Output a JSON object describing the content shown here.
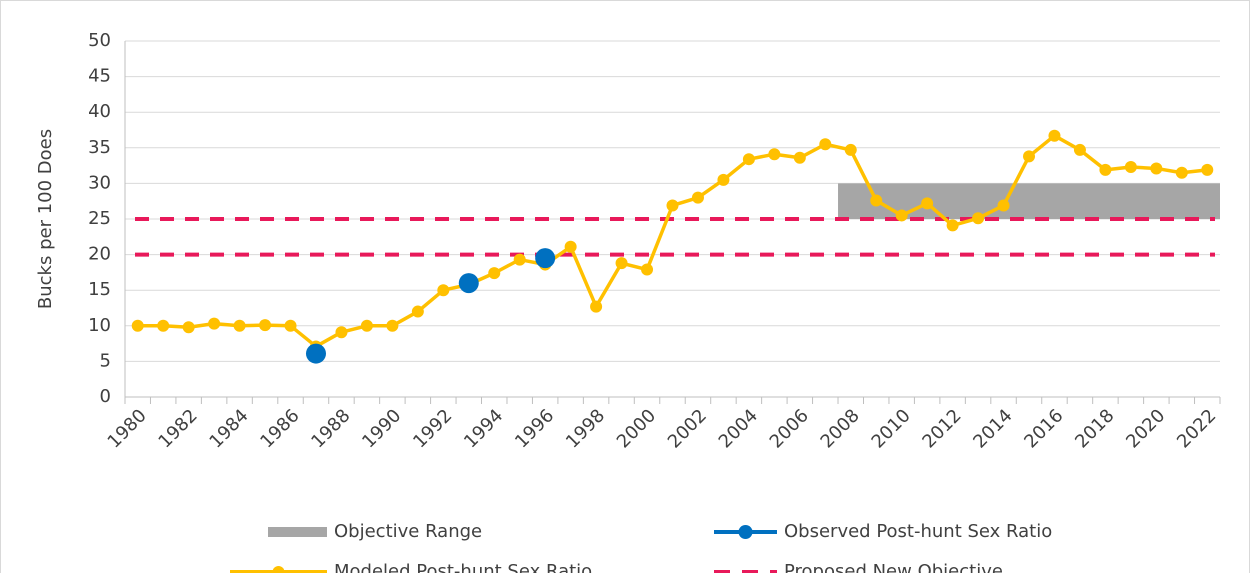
{
  "chart_data": {
    "type": "line",
    "y_label": "Bucks per 100 Does",
    "categories": [
      "1980",
      null,
      "1982",
      null,
      "1984",
      null,
      "1986",
      null,
      "1988",
      null,
      "1990",
      null,
      "1992",
      null,
      "1994",
      null,
      "1996",
      null,
      "1998",
      null,
      "2000",
      null,
      "2002",
      null,
      "2004",
      null,
      "2006",
      null,
      "2008",
      null,
      "2010",
      null,
      "2012",
      null,
      "2014",
      null,
      "2016",
      null,
      "2018",
      null,
      "2020",
      null,
      "2022"
    ],
    "ylim": [
      0,
      50
    ],
    "yticks": [
      0,
      5,
      10,
      15,
      20,
      25,
      30,
      35,
      40,
      45,
      50
    ],
    "grid": true,
    "objective_range": {
      "name": "Objective Range",
      "color": "#a6a6a6",
      "from": "2008",
      "to": "2022",
      "low": 25,
      "high": 30
    },
    "proposed": {
      "name": "Proposed New Objective",
      "color": "#e8195a",
      "values": [
        20,
        25
      ]
    },
    "series": [
      {
        "name": "Observed Post-hunt Sex Ratio",
        "color": "#0070c0",
        "values": [
          null,
          null,
          null,
          null,
          null,
          null,
          null,
          6.1,
          null,
          null,
          null,
          null,
          null,
          16,
          null,
          null,
          19.5,
          null,
          null,
          null,
          null,
          null,
          null,
          null,
          null,
          null,
          null,
          null,
          null,
          null,
          null,
          null,
          null,
          null,
          null,
          null,
          null,
          null,
          null,
          null,
          null,
          null,
          null
        ]
      },
      {
        "name": "Modeled Post-hunt Sex Ratio",
        "color": "#ffc000",
        "values": [
          10,
          10,
          9.8,
          10.3,
          10,
          10.1,
          10,
          7.1,
          9.1,
          10,
          10,
          12,
          15,
          15.8,
          17.4,
          19.3,
          18.6,
          21.1,
          12.7,
          18.8,
          17.9,
          26.9,
          28,
          30.5,
          33.4,
          34.1,
          33.6,
          35.5,
          34.7,
          27.6,
          25.5,
          27.2,
          24.1,
          25.1,
          26.9,
          33.8,
          36.7,
          34.7,
          31.9,
          32.3,
          32.1,
          31.5,
          31.9
        ]
      }
    ],
    "legend": "bottom"
  }
}
